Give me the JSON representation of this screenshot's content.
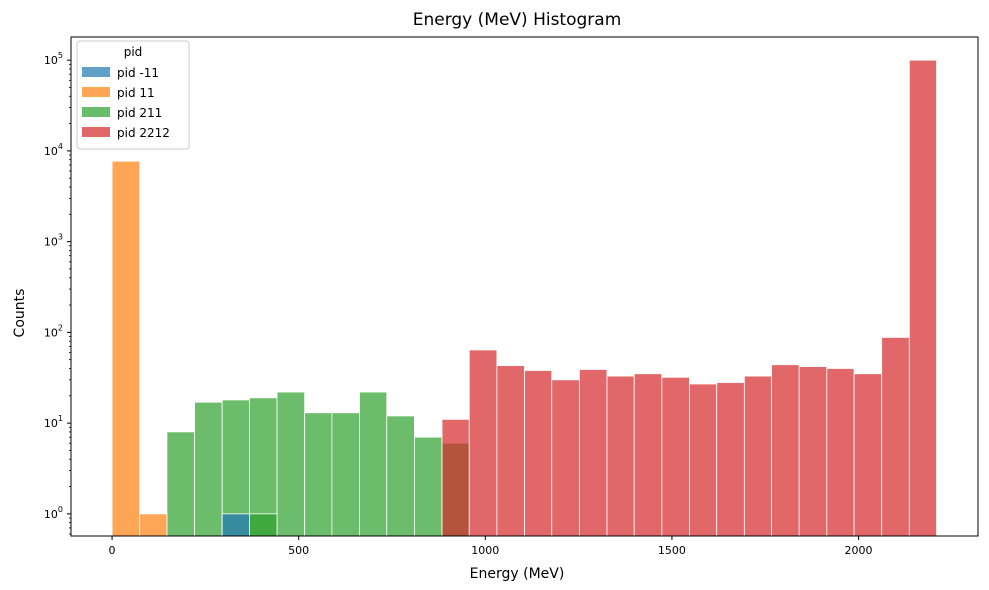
{
  "chart_data": {
    "type": "bar",
    "title": "Energy (MeV) Histogram",
    "xlabel": "Energy (MeV)",
    "ylabel": "Counts",
    "yscale": "log",
    "xlim": [
      -110,
      2320
    ],
    "ylim": [
      0.57,
      180000
    ],
    "x_ticks": [
      0,
      500,
      1000,
      1500,
      2000
    ],
    "y_ticks": [
      {
        "value": 1,
        "base": "10",
        "exp": "0"
      },
      {
        "value": 10,
        "base": "10",
        "exp": "1"
      },
      {
        "value": 100,
        "base": "10",
        "exp": "2"
      },
      {
        "value": 1000,
        "base": "10",
        "exp": "3"
      },
      {
        "value": 10000,
        "base": "10",
        "exp": "4"
      },
      {
        "value": 100000,
        "base": "10",
        "exp": "5"
      }
    ],
    "grid": false,
    "legend": {
      "title": "pid",
      "placement": "top-left"
    },
    "series": [
      {
        "name": "pid -11",
        "color": "#1f77b4",
        "bins": [
          [
            295,
            368,
            1
          ]
        ]
      },
      {
        "name": "pid 11",
        "color": "#ff7f0e",
        "bins": [
          [
            0,
            74,
            7700
          ],
          [
            74,
            147,
            1
          ]
        ]
      },
      {
        "name": "pid 211",
        "color": "#2ca02c",
        "bins": [
          [
            147,
            221,
            8
          ],
          [
            221,
            295,
            17
          ],
          [
            295,
            368,
            18
          ],
          [
            368,
            442,
            19
          ],
          [
            442,
            516,
            22
          ],
          [
            516,
            589,
            13
          ],
          [
            589,
            663,
            13
          ],
          [
            663,
            736,
            22
          ],
          [
            736,
            810,
            12
          ],
          [
            810,
            884,
            7
          ],
          [
            368,
            442,
            1
          ],
          [
            884,
            957,
            6
          ]
        ]
      },
      {
        "name": "pid 2212",
        "color": "#d62728",
        "bins": [
          [
            884,
            957,
            11
          ],
          [
            957,
            1031,
            64
          ],
          [
            1031,
            1105,
            43
          ],
          [
            1105,
            1178,
            38
          ],
          [
            1178,
            1252,
            30
          ],
          [
            1252,
            1326,
            39
          ],
          [
            1326,
            1399,
            33
          ],
          [
            1399,
            1473,
            35
          ],
          [
            1473,
            1547,
            32
          ],
          [
            1547,
            1620,
            27
          ],
          [
            1620,
            1694,
            28
          ],
          [
            1694,
            1767,
            33
          ],
          [
            1767,
            1841,
            44
          ],
          [
            1841,
            1915,
            42
          ],
          [
            1915,
            1988,
            40
          ],
          [
            1988,
            2062,
            35
          ],
          [
            2062,
            2136,
            88
          ],
          [
            2136,
            2209,
            100000
          ]
        ]
      }
    ]
  }
}
